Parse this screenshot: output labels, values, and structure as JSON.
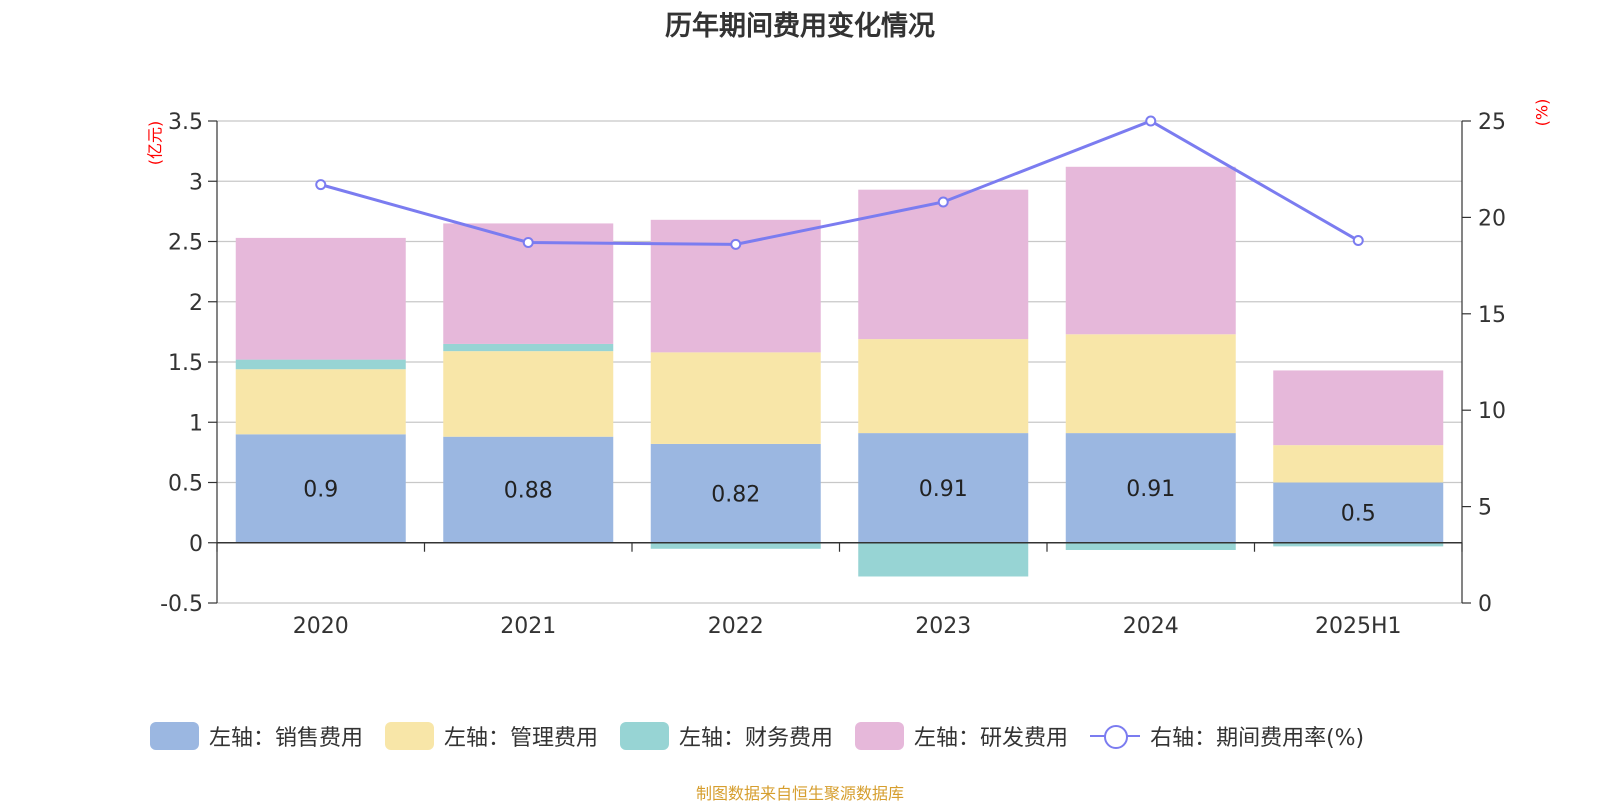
{
  "title": "历年期间费用变化情况",
  "left_unit": "(亿元)",
  "right_unit": "(%)",
  "source": "制图数据来自恒生聚源数据库",
  "colors": {
    "sales": "#9bb7e1",
    "admin": "#f8e6a8",
    "finance": "#97d4d4",
    "rnd": "#e6b8da",
    "rate": "#7b7cf0"
  },
  "legend": [
    {
      "label": "左轴：销售费用",
      "key": "sales"
    },
    {
      "label": "左轴：管理费用",
      "key": "admin"
    },
    {
      "label": "左轴：财务费用",
      "key": "finance"
    },
    {
      "label": "左轴：研发费用",
      "key": "rnd"
    },
    {
      "label": "右轴：期间费用率(%)",
      "key": "rate"
    }
  ],
  "chart_data": {
    "type": "bar",
    "stacked": true,
    "categories": [
      "2020",
      "2021",
      "2022",
      "2023",
      "2024",
      "2025H1"
    ],
    "series": [
      {
        "name": "左轴：销售费用",
        "axis": "left",
        "values": [
          0.9,
          0.88,
          0.82,
          0.91,
          0.91,
          0.5
        ]
      },
      {
        "name": "左轴：管理费用",
        "axis": "left",
        "values": [
          0.54,
          0.71,
          0.76,
          0.78,
          0.82,
          0.31
        ]
      },
      {
        "name": "左轴：财务费用",
        "axis": "left",
        "values": [
          0.08,
          0.06,
          -0.05,
          -0.28,
          -0.06,
          -0.03
        ]
      },
      {
        "name": "左轴：研发费用",
        "axis": "left",
        "values": [
          1.01,
          1.0,
          1.1,
          1.24,
          1.39,
          0.62
        ]
      },
      {
        "name": "右轴：期间费用率(%)",
        "axis": "right",
        "type": "line",
        "values": [
          21.7,
          18.7,
          18.6,
          20.8,
          25.0,
          18.8
        ]
      }
    ],
    "data_labels": [
      "0.9",
      "0.88",
      "0.82",
      "0.91",
      "0.91",
      "0.5"
    ],
    "left_axis": {
      "min": -0.5,
      "max": 3.5,
      "ticks": [
        "-0.5",
        "0",
        "0.5",
        "1",
        "1.5",
        "2",
        "2.5",
        "3",
        "3.5"
      ]
    },
    "right_axis": {
      "min": 0,
      "max": 25,
      "ticks": [
        "0",
        "5",
        "10",
        "15",
        "20",
        "25"
      ]
    },
    "grid": true,
    "legend_position": "bottom"
  }
}
